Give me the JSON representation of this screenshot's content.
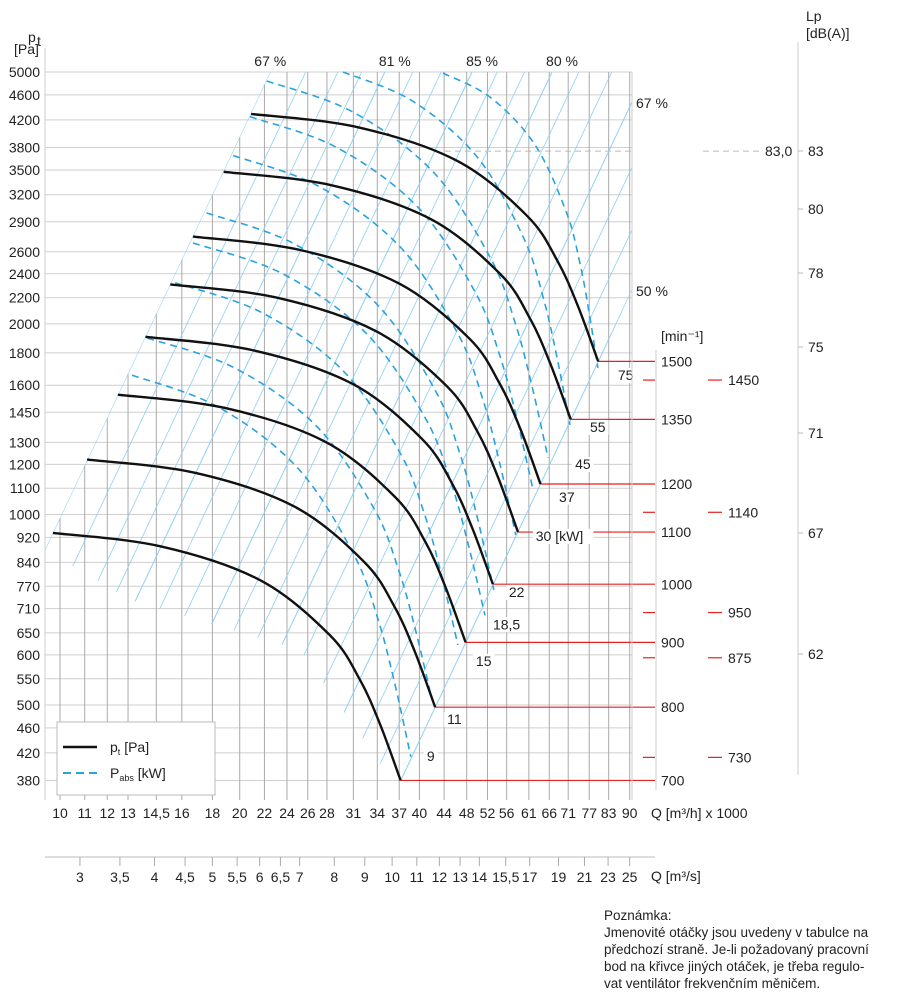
{
  "chart_data": {
    "type": "line",
    "x_scale": "log",
    "y_scale": "log",
    "grid": true,
    "legend_placement": "bottom-left",
    "y_axis": {
      "label_main": "p",
      "label_sub": "t",
      "label_unit": "[Pa]",
      "ylim": [
        380,
        5000
      ],
      "ticks": [
        5000,
        4600,
        4200,
        3800,
        3500,
        3200,
        2900,
        2600,
        2400,
        2200,
        2000,
        1800,
        1600,
        1450,
        1300,
        1200,
        1100,
        1000,
        920,
        840,
        770,
        710,
        650,
        600,
        550,
        500,
        460,
        420,
        380
      ]
    },
    "x_axis": {
      "label": "Q [m³/h] x 1000",
      "xlim": [
        10,
        90
      ],
      "ticks": [
        10,
        11,
        12,
        13,
        14.5,
        16,
        18,
        20,
        22,
        24,
        26,
        28,
        31,
        34,
        37,
        40,
        44,
        48,
        52,
        56,
        61,
        66,
        71,
        77,
        83,
        90
      ],
      "tick_labels": [
        "10",
        "11",
        "12",
        "13",
        "14,5",
        "16",
        "18",
        "20",
        "22",
        "24",
        "26",
        "28",
        "31",
        "34",
        "37",
        "40",
        "44",
        "48",
        "52",
        "56",
        "61",
        "66",
        "71",
        "77",
        "83",
        "90"
      ]
    },
    "x2_axis": {
      "label": "Q [m³/s]",
      "ticks": [
        3,
        3.5,
        4,
        4.5,
        5,
        5.5,
        6,
        6.5,
        7,
        8,
        9,
        10,
        11,
        12,
        13,
        14,
        15.5,
        17,
        19,
        21,
        23,
        25
      ],
      "tick_labels": [
        "3",
        "3,5",
        "4",
        "4,5",
        "5",
        "5,5",
        "6",
        "6,5",
        "7",
        "8",
        "9",
        "10",
        "11",
        "12",
        "13",
        "14",
        "15,5",
        "17",
        "19",
        "21",
        "23",
        "25"
      ]
    },
    "rpm_axis": {
      "label": "[min⁻¹]",
      "major": [
        1500,
        1350,
        1200,
        1100,
        1000,
        900,
        800,
        700
      ],
      "minor": [
        1450,
        1140,
        950,
        875,
        730
      ]
    },
    "lp_axis": {
      "label_line1": "Lp",
      "label_line2": "[dB(A)]",
      "ticks": [
        "83",
        "80",
        "78",
        "75",
        "71",
        "67",
        "62"
      ],
      "marker_value": "83,0",
      "marker_pressure": 3750
    },
    "legend": {
      "pt": {
        "main": "p",
        "sub": "t",
        "unit": " [Pa]"
      },
      "pabs": {
        "main": "P",
        "sub": "abs",
        "unit": " [kW]"
      }
    },
    "colors": {
      "pt_curve": "#111111",
      "pabs_curve": "#29a3e0",
      "efficiency_line": "#8fd0f2",
      "rpm_line": "#e32222",
      "grid": "#cccccc"
    },
    "pt_curves": [
      {
        "rpm": 700,
        "Q": [
          9.73,
          14.7,
          21.6,
          28.3,
          31.8,
          34.4,
          37.2
        ],
        "p": [
          935,
          891,
          788,
          645,
          548,
          465,
          380
        ]
      },
      {
        "rpm": 800,
        "Q": [
          11.1,
          16.8,
          24.7,
          32.3,
          36.3,
          39.3,
          42.5
        ],
        "p": [
          1221,
          1164,
          1029,
          842,
          716,
          607,
          496
        ]
      },
      {
        "rpm": 900,
        "Q": [
          12.5,
          18.9,
          27.8,
          36.4,
          40.9,
          44.2,
          47.8
        ],
        "p": [
          1546,
          1473,
          1303,
          1066,
          906,
          769,
          628
        ]
      },
      {
        "rpm": 1000,
        "Q": [
          13.9,
          21.0,
          30.9,
          40.4,
          45.4,
          49.1,
          53.1
        ],
        "p": [
          1908,
          1818,
          1608,
          1316,
          1118,
          949,
          776
        ]
      },
      {
        "rpm": 1100,
        "Q": [
          15.3,
          23.1,
          33.9,
          44.5,
          50.0,
          54.1,
          58.5
        ],
        "p": [
          2309,
          2200,
          1946,
          1593,
          1353,
          1148,
          938
        ]
      },
      {
        "rpm": 1200,
        "Q": [
          16.7,
          25.2,
          37.0,
          48.5,
          54.5,
          59.0,
          63.8
        ],
        "p": [
          2748,
          2618,
          2316,
          1896,
          1610,
          1367,
          1117
        ]
      },
      {
        "rpm": 1350,
        "Q": [
          18.8,
          28.4,
          41.7,
          54.6,
          61.3,
          66.3,
          71.7
        ],
        "p": [
          3478,
          3314,
          2931,
          2399,
          2038,
          1729,
          1413
        ]
      },
      {
        "rpm": 1500,
        "Q": [
          20.9,
          31.5,
          46.3,
          60.6,
          68.1,
          73.7,
          79.7
        ],
        "p": [
          4293,
          4091,
          3618,
          2962,
          2516,
          2135,
          1745
        ]
      }
    ],
    "pabs_curves": [
      {
        "label": "75",
        "start": [
          43.8,
          4980
        ],
        "end": [
          79.6,
          1704
        ]
      },
      {
        "label": "55",
        "start": [
          29.8,
          5000
        ],
        "end": [
          71.5,
          1385
        ]
      },
      {
        "label": "45",
        "start": [
          22.2,
          4840
        ],
        "end": [
          65.7,
          1228
        ]
      },
      {
        "label": "37",
        "start": [
          20.8,
          4250
        ],
        "end": [
          62.0,
          1094
        ]
      },
      {
        "label": "30 [kW]",
        "start": [
          19.5,
          3690
        ],
        "end": [
          58.0,
          928
        ]
      },
      {
        "label": "22",
        "start": [
          17.6,
          2995
        ],
        "end": [
          53.3,
          760
        ]
      },
      {
        "label": "18,5",
        "start": [
          16.7,
          2685
        ],
        "end": [
          51.5,
          693
        ]
      },
      {
        "label": "15",
        "start": [
          15.6,
          2323
        ],
        "end": [
          46.4,
          622
        ]
      },
      {
        "label": "11",
        "start": [
          14.0,
          1900
        ],
        "end": [
          42.0,
          509
        ]
      },
      {
        "label": "9",
        "start": [
          13.2,
          1660
        ],
        "end": [
          38.7,
          414
        ]
      }
    ],
    "efficiency_lines": [
      {
        "label": "67 %",
        "Q_at_5000": 22.5
      },
      {
        "label": "",
        "Q_at_5000": 25.8
      },
      {
        "label": "",
        "Q_at_5000": 29.2
      },
      {
        "label": "",
        "Q_at_5000": 32.0
      },
      {
        "label": "81 %",
        "Q_at_5000": 35.0
      },
      {
        "label": "",
        "Q_at_5000": 39.0
      },
      {
        "label": "",
        "Q_at_5000": 43.5
      },
      {
        "label": "85 %",
        "Q_at_5000": 49.0
      },
      {
        "label": "",
        "Q_at_5000": 54.0
      },
      {
        "label": "",
        "Q_at_5000": 60.0
      },
      {
        "label": "80 %",
        "Q_at_5000": 66.7
      },
      {
        "label": "",
        "Q_at_5000": 74.0
      },
      {
        "label": "",
        "Q_at_5000": 84.0
      },
      {
        "label": "67 %",
        "Q_at_5000": 95.9
      },
      {
        "label": "",
        "Q_at_5000": 108.0
      },
      {
        "label": "",
        "Q_at_5000": 121.0
      },
      {
        "label": "50 %",
        "Q_at_5000": 135.0
      }
    ]
  },
  "note": {
    "title": "Poznámka:",
    "lines": [
      "Jmenovité otáčky jsou uvedeny v tabulce na",
      "předchozí straně. Je-li požadovaný pracovní",
      "bod na křivce jiných otáček, je třeba regulo-",
      "vat ventilátor frekvenčním měničem."
    ]
  }
}
